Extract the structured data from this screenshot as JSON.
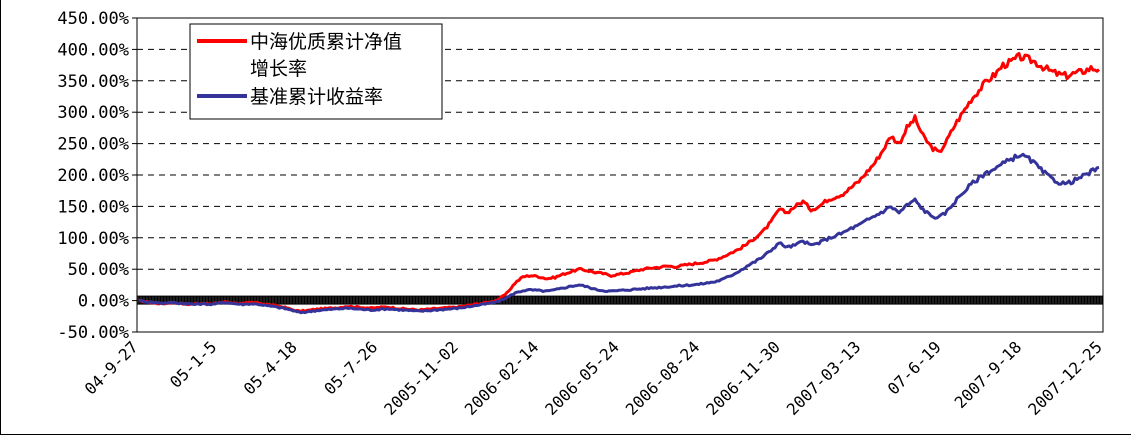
{
  "chart_data": {
    "type": "line",
    "title": "",
    "xlabel": "",
    "ylabel": "",
    "ylim": [
      -50,
      450
    ],
    "y_ticks": [
      -50,
      0,
      50,
      100,
      150,
      200,
      250,
      300,
      350,
      400,
      450
    ],
    "y_tick_labels": [
      "-50.00%",
      "0.00%",
      "50.00%",
      "100.00%",
      "150.00%",
      "200.00%",
      "250.00%",
      "300.00%",
      "350.00%",
      "400.00%",
      "450.00%"
    ],
    "x_tick_labels": [
      "04-9-27",
      "05-1-5",
      "05-4-18",
      "05-7-26",
      "2005-11-02",
      "2006-02-14",
      "2006-05-24",
      "2006-08-24",
      "2006-11-30",
      "2007-03-13",
      "07-6-19",
      "2007-9-18",
      "2007-12-25"
    ],
    "grid": "horizontal-dashed",
    "legend_position": "top-left",
    "series": [
      {
        "name_lines": [
          "中海优质累计净值",
          "增长率"
        ],
        "color": "#ff0000",
        "values": [
          0,
          -2,
          -4,
          -5,
          -3,
          -4,
          -6,
          -5,
          -4,
          -6,
          -3,
          -2,
          -4,
          -5,
          -3,
          -4,
          -6,
          -8,
          -10,
          -14,
          -17,
          -16,
          -14,
          -13,
          -12,
          -11,
          -9,
          -10,
          -11,
          -12,
          -11,
          -10,
          -12,
          -13,
          -14,
          -15,
          -14,
          -13,
          -12,
          -11,
          -10,
          -8,
          -6,
          -4,
          -2,
          2,
          12,
          28,
          38,
          40,
          38,
          35,
          37,
          42,
          46,
          50,
          48,
          45,
          43,
          40,
          42,
          44,
          47,
          50,
          52,
          53,
          55,
          54,
          56,
          58,
          60,
          62,
          65,
          70,
          76,
          82,
          90,
          100,
          110,
          125,
          145,
          140,
          150,
          158,
          145,
          150,
          160,
          165,
          170,
          180,
          190,
          205,
          220,
          240,
          262,
          250,
          275,
          290,
          262,
          245,
          235,
          255,
          280,
          300,
          320,
          335,
          350,
          360,
          375,
          380,
          388,
          385,
          380,
          372,
          365,
          360,
          358,
          362,
          365,
          370,
          368
        ]
      },
      {
        "name": "基准累计收益率",
        "color": "#333399",
        "values": [
          0,
          -2,
          -3,
          -4,
          -3,
          -4,
          -5,
          -6,
          -5,
          -6,
          -4,
          -3,
          -5,
          -6,
          -5,
          -6,
          -8,
          -10,
          -12,
          -15,
          -19,
          -18,
          -16,
          -15,
          -14,
          -13,
          -12,
          -13,
          -14,
          -15,
          -14,
          -13,
          -14,
          -15,
          -16,
          -17,
          -16,
          -15,
          -14,
          -13,
          -12,
          -10,
          -8,
          -6,
          -4,
          -1,
          5,
          12,
          16,
          17,
          16,
          15,
          17,
          20,
          23,
          25,
          22,
          18,
          16,
          15,
          16,
          17,
          18,
          19,
          20,
          21,
          22,
          23,
          24,
          25,
          26,
          28,
          30,
          34,
          40,
          47,
          55,
          62,
          70,
          80,
          92,
          85,
          88,
          95,
          88,
          92,
          98,
          103,
          108,
          115,
          120,
          128,
          135,
          142,
          150,
          140,
          152,
          160,
          145,
          135,
          132,
          142,
          158,
          172,
          185,
          195,
          205,
          210,
          218,
          225,
          232,
          228,
          218,
          205,
          195,
          188,
          186,
          192,
          198,
          205,
          212
        ]
      }
    ],
    "zero_band": "dense black tick band along 0.00%"
  }
}
